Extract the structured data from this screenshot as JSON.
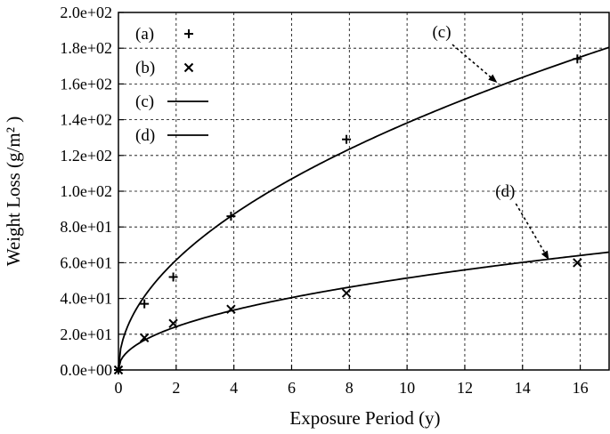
{
  "chart_data": {
    "type": "scatter",
    "title": "",
    "xlabel": "Exposure Period (y)",
    "ylabel": "Weight Loss (g/m² )",
    "xlim": [
      0,
      17
    ],
    "ylim": [
      0,
      200
    ],
    "x_ticks": [
      0,
      2,
      4,
      6,
      8,
      10,
      12,
      14,
      16
    ],
    "x_tick_labels": [
      "0",
      "2",
      "4",
      "6",
      "8",
      "10",
      "12",
      "14",
      "16"
    ],
    "y_ticks": [
      0,
      20,
      40,
      60,
      80,
      100,
      120,
      140,
      160,
      180,
      200
    ],
    "y_tick_labels": [
      "0.0e+00",
      "2.0e+01",
      "4.0e+01",
      "6.0e+01",
      "8.0e+01",
      "1.0e+02",
      "1.2e+02",
      "1.4e+02",
      "1.6e+02",
      "1.8e+02",
      "2.0e+02"
    ],
    "grid": true,
    "legend_position": "top-left",
    "series": [
      {
        "name": "(a)",
        "kind": "points",
        "marker": "plus",
        "x": [
          0,
          0.9,
          1.9,
          3.9,
          7.9,
          15.9
        ],
        "y": [
          0,
          37,
          52,
          86,
          129,
          174
        ]
      },
      {
        "name": "(b)",
        "kind": "points",
        "marker": "cross",
        "x": [
          0,
          0.9,
          1.9,
          3.9,
          7.9,
          15.9
        ],
        "y": [
          0,
          18,
          26,
          34,
          43,
          60
        ]
      },
      {
        "name": "(c)",
        "kind": "curve",
        "model": "power",
        "coef": 43.4,
        "exponent": 0.503
      },
      {
        "name": "(d)",
        "kind": "curve",
        "model": "power",
        "coef": 17.5,
        "exponent": 0.468
      }
    ],
    "annotations": [
      {
        "text": "(c)",
        "target": "(c)",
        "text_x": 11.2,
        "text_y": 186,
        "point_x": 13.1,
        "point_y": 161
      },
      {
        "text": "(d)",
        "target": "(d)",
        "text_x": 13.4,
        "text_y": 97,
        "point_x": 14.9,
        "point_y": 62
      }
    ]
  }
}
